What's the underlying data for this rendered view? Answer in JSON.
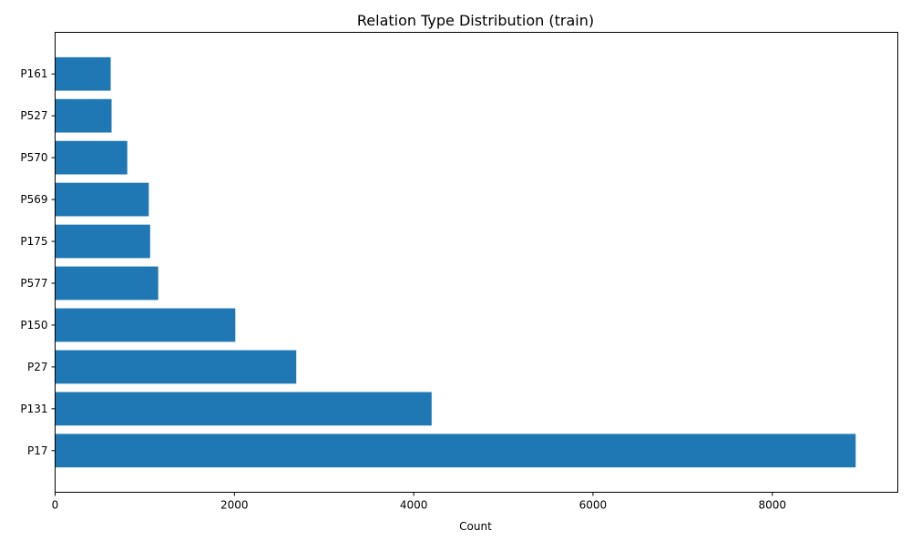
{
  "chart_data": {
    "type": "bar",
    "orientation": "horizontal",
    "title": "Relation Type Distribution (train)",
    "xlabel": "Count",
    "ylabel": "",
    "categories": [
      "P17",
      "P131",
      "P27",
      "P150",
      "P577",
      "P175",
      "P569",
      "P570",
      "P527",
      "P161"
    ],
    "values": [
      8930,
      4200,
      2690,
      2010,
      1150,
      1060,
      1045,
      805,
      630,
      620
    ],
    "xlim": [
      0,
      9400
    ],
    "xticks": [
      0,
      2000,
      4000,
      6000,
      8000
    ],
    "grid": false,
    "legend": "none",
    "bar_color": "#1f77b4"
  }
}
